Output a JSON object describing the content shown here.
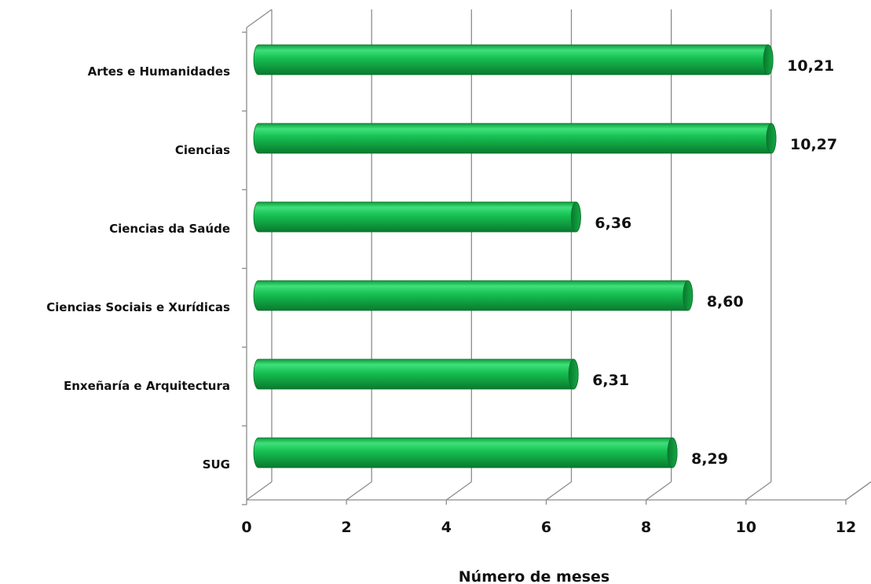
{
  "chart_data": {
    "type": "bar",
    "orientation": "horizontal",
    "categories": [
      "Artes e Humanidades",
      "Ciencias",
      "Ciencias da Saúde",
      "Ciencias Sociais e Xurídicas",
      "Enxeñaría e Arquitectura",
      "SUG"
    ],
    "values": [
      10.21,
      10.27,
      6.36,
      8.6,
      6.31,
      8.29
    ],
    "value_labels": [
      "10,21",
      "10,27",
      "6,36",
      "8,60",
      "6,31",
      "8,29"
    ],
    "xlabel": "Número de meses",
    "xlim": [
      0,
      12
    ],
    "xticks": [
      "0",
      "2",
      "4",
      "6",
      "8",
      "10",
      "12"
    ],
    "grid": true,
    "style": "3d-cylinder",
    "bar_color": "#12b24a"
  }
}
